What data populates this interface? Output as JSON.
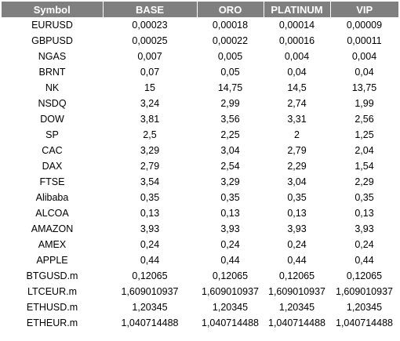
{
  "table": {
    "headers": [
      "Symbol",
      "BASE",
      "ORO",
      "PLATINUM",
      "VIP"
    ],
    "rows": [
      [
        "EURUSD",
        "0,00023",
        "0,00018",
        "0,00014",
        "0,00009"
      ],
      [
        "GBPUSD",
        "0,00025",
        "0,00022",
        "0,00016",
        "0,00011"
      ],
      [
        "NGAS",
        "0,007",
        "0,005",
        "0,004",
        "0,004"
      ],
      [
        "BRNT",
        "0,07",
        "0,05",
        "0,04",
        "0,04"
      ],
      [
        "NK",
        "15",
        "14,75",
        "14,5",
        "13,75"
      ],
      [
        "NSDQ",
        "3,24",
        "2,99",
        "2,74",
        "1,99"
      ],
      [
        "DOW",
        "3,81",
        "3,56",
        "3,31",
        "2,56"
      ],
      [
        "SP",
        "2,5",
        "2,25",
        "2",
        "1,25"
      ],
      [
        "CAC",
        "3,29",
        "3,04",
        "2,79",
        "2,04"
      ],
      [
        "DAX",
        "2,79",
        "2,54",
        "2,29",
        "1,54"
      ],
      [
        "FTSE",
        "3,54",
        "3,29",
        "3,04",
        "2,29"
      ],
      [
        "Alibaba",
        "0,35",
        "0,35",
        "0,35",
        "0,35"
      ],
      [
        "ALCOA",
        "0,13",
        "0,13",
        "0,13",
        "0,13"
      ],
      [
        "AMAZON",
        "3,93",
        "3,93",
        "3,93",
        "3,93"
      ],
      [
        "AMEX",
        "0,24",
        "0,24",
        "0,24",
        "0,24"
      ],
      [
        "APPLE",
        "0,44",
        "0,44",
        "0,44",
        "0,44"
      ],
      [
        "BTGUSD.m",
        "0,12065",
        "0,12065",
        "0,12065",
        "0,12065"
      ],
      [
        "LTCEUR.m",
        "1,609010937",
        "1,609010937",
        "1,609010937",
        "1,609010937"
      ],
      [
        "ETHUSD.m",
        "1,20345",
        "1,20345",
        "1,20345",
        "1,20345"
      ],
      [
        "ETHEUR.m",
        "1,040714488",
        "1,040714488",
        "1,040714488",
        "1,040714488"
      ]
    ]
  },
  "colors": {
    "header_bg": "#7f7f7f",
    "header_text": "#ffffff",
    "body_text": "#000000"
  }
}
